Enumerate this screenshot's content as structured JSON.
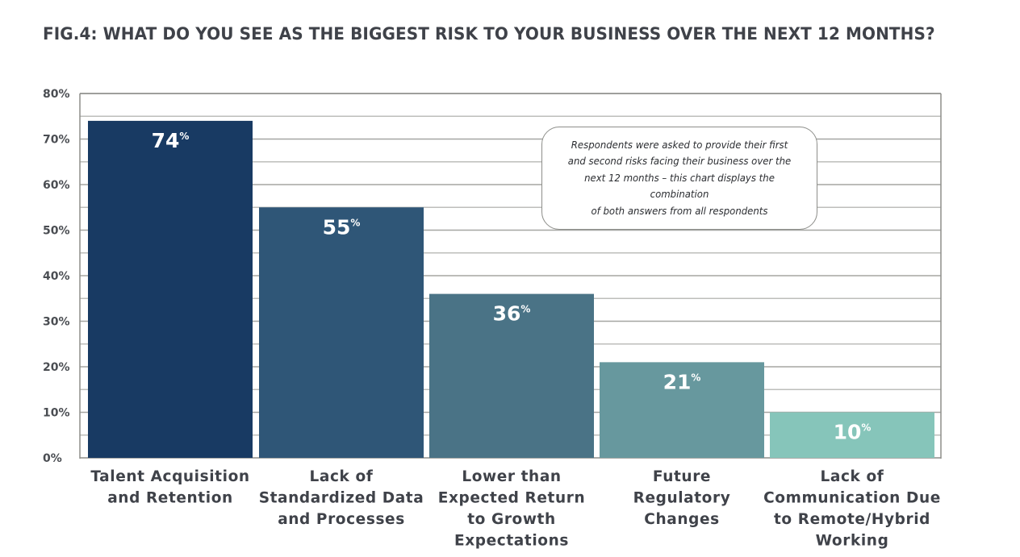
{
  "chart_data": {
    "type": "bar",
    "title": "FIG.4: WHAT DO YOU SEE AS THE BIGGEST RISK TO YOUR BUSINESS OVER THE NEXT 12 MONTHS?",
    "xlabel": "",
    "ylabel": "",
    "ylim": [
      0,
      80
    ],
    "yticks": [
      0,
      10,
      20,
      30,
      40,
      50,
      60,
      70,
      80
    ],
    "ytick_labels": [
      "0%",
      "10%",
      "20%",
      "30%",
      "40%",
      "50%",
      "60%",
      "70%",
      "80%"
    ],
    "minor_grid_step": 5,
    "grid": true,
    "categories": [
      [
        "Talent Acquisition",
        "and Retention"
      ],
      [
        "Lack of",
        "Standardized Data",
        "and Processes"
      ],
      [
        "Lower than",
        "Expected Return",
        "to Growth",
        "Expectations"
      ],
      [
        "Future",
        "Regulatory",
        "Changes"
      ],
      [
        "Lack of",
        "Communication Due",
        "to Remote/Hybrid",
        "Working"
      ]
    ],
    "values": [
      74,
      55,
      36,
      21,
      10
    ],
    "value_labels": [
      "74",
      "55",
      "36",
      "21",
      "10"
    ],
    "value_suffix": "%",
    "bar_colors": [
      "#183A63",
      "#2F5677",
      "#4A7386",
      "#67989E",
      "#86C5BA"
    ],
    "annotation": "Respondents were asked to provide their first and second risks facing their business over the next 12 months – this chart displays the combination of both answers from all respondents"
  },
  "note_lines": [
    "Respondents were asked to provide their first",
    "and second risks facing their business over the",
    "next 12 months – this chart displays the combination",
    "of both answers from all respondents"
  ]
}
